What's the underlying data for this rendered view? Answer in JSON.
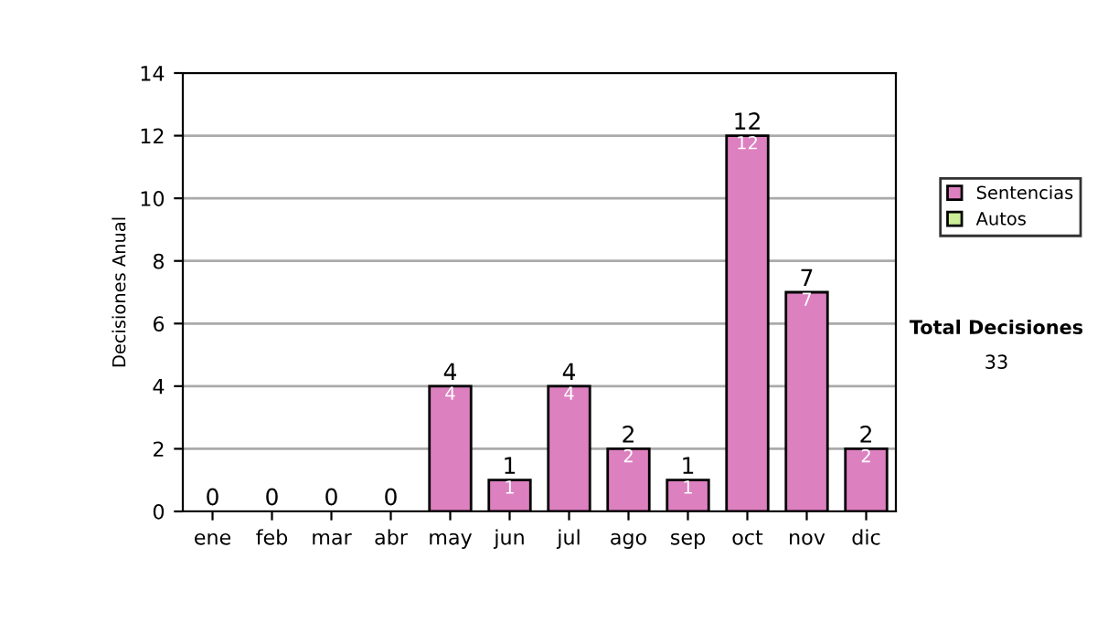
{
  "chart_data": {
    "type": "bar",
    "stacked": true,
    "categories": [
      "ene",
      "feb",
      "mar",
      "abr",
      "may",
      "jun",
      "jul",
      "ago",
      "sep",
      "oct",
      "nov",
      "dic"
    ],
    "ylabel": "Decisiones Anual",
    "series": [
      {
        "name": "Sentencias",
        "color": "#dd80c0",
        "values": [
          0,
          0,
          0,
          0,
          4,
          1,
          4,
          2,
          1,
          12,
          7,
          2
        ],
        "value_labels": [
          null,
          null,
          null,
          null,
          "4",
          "1",
          "4",
          "2",
          "1",
          "12",
          "7",
          "2"
        ]
      },
      {
        "name": "Autos",
        "color": "#ccee99",
        "values": [
          0,
          0,
          0,
          0,
          0,
          0,
          0,
          0,
          0,
          0,
          0,
          0
        ]
      }
    ],
    "totals": [
      "0",
      "0",
      "0",
      "0",
      "4",
      "1",
      "4",
      "2",
      "1",
      "12",
      "7",
      "2"
    ],
    "ylim": [
      0,
      14
    ],
    "yticks": [
      0,
      2,
      4,
      6,
      8,
      10,
      12,
      14
    ],
    "grid": "y",
    "legend": "right",
    "annotations": [
      "Total Decisiones",
      "33"
    ]
  }
}
